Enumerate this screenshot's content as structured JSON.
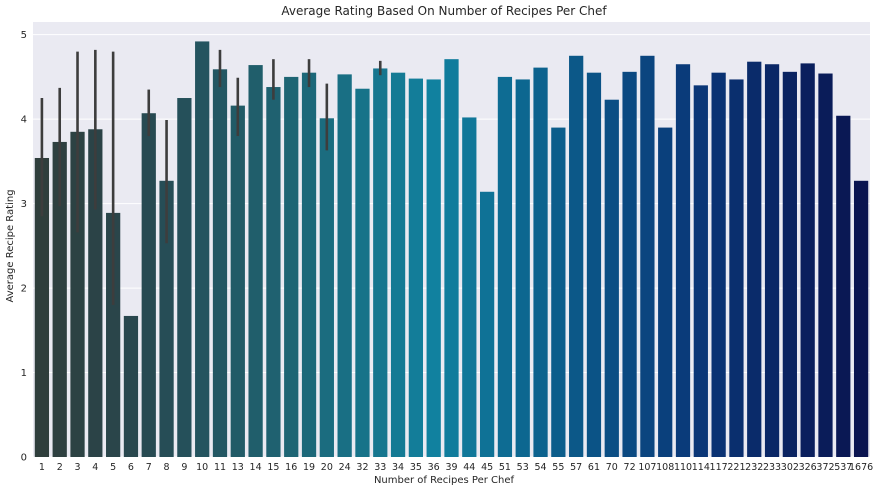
{
  "chart_data": {
    "type": "bar",
    "title": "Average Rating Based On Number of Recipes Per Chef",
    "xlabel": "Number of Recipes Per Chef",
    "ylabel": "Average Recipe Rating",
    "ylim": [
      0,
      5.15
    ],
    "yticks": [
      0,
      1,
      2,
      3,
      4,
      5
    ],
    "grid": true,
    "background": "#eaeaf2",
    "palette": "dark slate to teal to navy gradient",
    "categories": [
      "1",
      "2",
      "3",
      "4",
      "5",
      "6",
      "7",
      "8",
      "9",
      "10",
      "11",
      "13",
      "14",
      "15",
      "16",
      "19",
      "20",
      "24",
      "32",
      "33",
      "34",
      "35",
      "36",
      "39",
      "44",
      "45",
      "51",
      "53",
      "54",
      "55",
      "57",
      "61",
      "70",
      "72",
      "107",
      "108",
      "110",
      "114",
      "117",
      "221",
      "232",
      "233",
      "302",
      "326",
      "372",
      "537",
      "1676"
    ],
    "values": [
      3.54,
      3.73,
      3.85,
      3.88,
      2.89,
      1.67,
      4.07,
      3.27,
      4.25,
      4.92,
      4.59,
      4.16,
      4.64,
      4.38,
      4.5,
      4.55,
      4.01,
      4.53,
      4.36,
      4.6,
      4.55,
      4.48,
      4.47,
      4.71,
      4.02,
      3.14,
      4.5,
      4.47,
      4.61,
      3.9,
      4.75,
      4.55,
      4.23,
      4.56,
      4.75,
      3.9,
      4.65,
      4.4,
      4.55,
      4.47,
      4.68,
      4.65,
      4.56,
      4.66,
      4.54,
      4.04,
      3.27
    ],
    "error_bars": [
      {
        "category": "1",
        "low": 2.85,
        "high": 4.25
      },
      {
        "category": "2",
        "low": 2.97,
        "high": 4.37
      },
      {
        "category": "3",
        "low": 2.66,
        "high": 4.8
      },
      {
        "category": "4",
        "low": 2.93,
        "high": 4.82
      },
      {
        "category": "5",
        "low": 1.8,
        "high": 4.8
      },
      {
        "category": "7",
        "low": 3.8,
        "high": 4.35
      },
      {
        "category": "8",
        "low": 2.53,
        "high": 3.99
      },
      {
        "category": "11",
        "low": 4.38,
        "high": 4.82
      },
      {
        "category": "13",
        "low": 3.8,
        "high": 4.49
      },
      {
        "category": "15",
        "low": 4.23,
        "high": 4.71
      },
      {
        "category": "19",
        "low": 4.38,
        "high": 4.71
      },
      {
        "category": "20",
        "low": 3.63,
        "high": 4.42
      },
      {
        "category": "33",
        "low": 4.52,
        "high": 4.69
      }
    ]
  }
}
